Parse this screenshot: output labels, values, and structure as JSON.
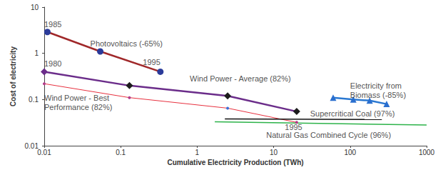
{
  "chart_data": {
    "type": "line",
    "log": true,
    "grid": false,
    "x_label": "Cumulative Electricity Production (TWh)",
    "y_label": "Cost of electricity",
    "xlim": [
      0.01,
      1000
    ],
    "xticks": [
      0.01,
      0.1,
      1,
      10,
      100,
      1000
    ],
    "ylim": [
      0.01,
      10
    ],
    "yticks": [
      0.01,
      0.1,
      1,
      10
    ],
    "series": [
      {
        "name": "Photovoltaics (-65%)",
        "color": "#a0282a",
        "marker": "circle",
        "colors": [
          "#2b3b9a",
          "#2b3b9a",
          "#2b3b9a"
        ],
        "values": [
          [
            0.011,
            2.9
          ],
          [
            0.054,
            1.1
          ],
          [
            0.33,
            0.4
          ]
        ]
      },
      {
        "name": "Wind Power - Average (82%)",
        "color": "#6b2d8a",
        "marker": "diamond",
        "colors": [
          "#6b2d8a",
          "#1c1c1c",
          "#1c1c1c",
          "#1c1c1c"
        ],
        "values": [
          [
            0.01,
            0.4
          ],
          [
            0.13,
            0.2
          ],
          [
            2.5,
            0.12
          ],
          [
            20,
            0.055
          ]
        ]
      },
      {
        "name": "Wind Power - Best Performance (82%)",
        "color": "#e8313f",
        "marker": "dot",
        "colors": [
          "#b23a8a",
          "#b23a8a",
          "#3a6fd8",
          "#b23a8a"
        ],
        "values": [
          [
            0.01,
            0.22
          ],
          [
            0.13,
            0.11
          ],
          [
            2.5,
            0.065
          ],
          [
            20,
            0.032
          ]
        ]
      },
      {
        "name": "Electricity from Biomass (-85%)",
        "color": "#2a78d1",
        "marker": "triangle",
        "colors": [
          "#2a6fcf",
          "#2a6fcf",
          "#2a6fcf",
          "#2a6fcf"
        ],
        "values": [
          [
            60,
            0.11
          ],
          [
            110,
            0.1
          ],
          [
            180,
            0.095
          ],
          [
            300,
            0.08
          ]
        ]
      },
      {
        "name": "Supercritical Coal (97%)",
        "color": "#111111",
        "marker": "none",
        "values": [
          [
            2.3,
            0.038
          ],
          [
            260,
            0.037
          ]
        ]
      },
      {
        "name": "Natural Gas Combined Cycle (96%)",
        "color": "#2db34a",
        "marker": "none",
        "values": [
          [
            1.7,
            0.033
          ],
          [
            1000,
            0.028
          ]
        ]
      }
    ],
    "annotations": [
      {
        "text": "1985",
        "x": 0.01,
        "y": 4.3
      },
      {
        "text": "Photovoltaics (-65%)",
        "x": 0.04,
        "y": 1.6
      },
      {
        "text": "1995",
        "x": 0.195,
        "y": 0.65
      },
      {
        "text": "1980",
        "x": 0.01,
        "y": 0.6
      },
      {
        "text": "Wind Power - Average (82%)",
        "x": 0.8,
        "y": 0.28
      },
      {
        "text": "Wind Power - Best\nPerformance (82%)",
        "x": 0.01,
        "y": 0.085
      },
      {
        "text": "Electricity from\nBiomass (-85%)",
        "x": 100,
        "y": 0.16
      },
      {
        "text": "Supercritical Coal (97%)",
        "x": 30,
        "y": 0.05
      },
      {
        "text": "1995",
        "x": 14,
        "y": 0.025
      },
      {
        "text": "Natural Gas Combined Cycle (96%)",
        "x": 8,
        "y": 0.017
      }
    ]
  }
}
